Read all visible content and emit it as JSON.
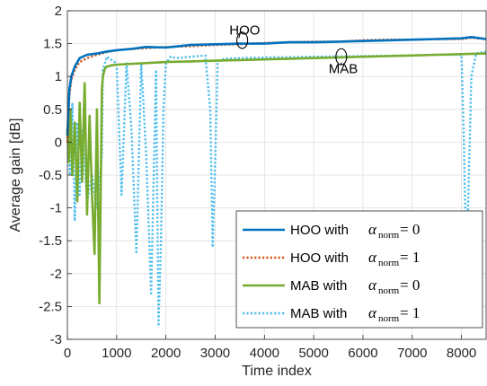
{
  "chart_data": {
    "type": "line",
    "title": "",
    "xlabel": "Time index",
    "ylabel": "Average gain [dB]",
    "xlim": [
      0,
      8500
    ],
    "ylim": [
      -3,
      2
    ],
    "xticks": [
      0,
      1000,
      2000,
      3000,
      4000,
      5000,
      6000,
      7000,
      8000
    ],
    "xtick_labels": [
      "0",
      "1000",
      "2000",
      "3000",
      "4000",
      "5000",
      "6000",
      "7000",
      "8000"
    ],
    "yticks": [
      -3,
      -2.5,
      -2,
      -1.5,
      -1,
      -0.5,
      0,
      0.5,
      1,
      1.5,
      2
    ],
    "ytick_labels": [
      "-3",
      "-2.5",
      "-2",
      "-1.5",
      "-1",
      "-0.5",
      "0",
      "0.5",
      "1",
      "1.5",
      "2"
    ],
    "grid": true,
    "legend_position": "bottom-right",
    "series": [
      {
        "name": "HOO with",
        "math": "α",
        "math_sub": "norm",
        "math_rhs": "= 0",
        "color": "#0072BD",
        "style": "solid",
        "x": [
          0,
          40,
          80,
          150,
          250,
          400,
          600,
          800,
          1000,
          1300,
          1600,
          2000,
          2500,
          3000,
          3500,
          4000,
          4500,
          5000,
          5500,
          6000,
          6500,
          7000,
          7500,
          8000,
          8200,
          8500
        ],
        "y": [
          0.1,
          0.8,
          1.0,
          1.15,
          1.28,
          1.33,
          1.35,
          1.38,
          1.4,
          1.42,
          1.45,
          1.44,
          1.48,
          1.49,
          1.5,
          1.5,
          1.52,
          1.52,
          1.53,
          1.54,
          1.55,
          1.56,
          1.57,
          1.58,
          1.6,
          1.57
        ]
      },
      {
        "name": "HOO with",
        "math": "α",
        "math_sub": "norm",
        "math_rhs": "= 1",
        "color": "#D95319",
        "style": "dotted",
        "x": [
          0,
          40,
          80,
          150,
          250,
          400,
          600,
          800,
          1000,
          1300,
          1600,
          2000,
          2500,
          3000,
          3500,
          4000,
          4500,
          5000,
          5500,
          6000,
          6500,
          7000,
          7500,
          8000,
          8200,
          8500
        ],
        "y": [
          0.0,
          0.7,
          0.95,
          1.1,
          1.22,
          1.28,
          1.33,
          1.37,
          1.4,
          1.42,
          1.43,
          1.45,
          1.46,
          1.48,
          1.49,
          1.51,
          1.52,
          1.53,
          1.53,
          1.55,
          1.56,
          1.56,
          1.57,
          1.57,
          1.59,
          1.57
        ]
      },
      {
        "name": "MAB with",
        "math": "α",
        "math_sub": "norm",
        "math_rhs": "= 0",
        "color": "#77AC30",
        "style": "solid",
        "x": [
          0,
          30,
          60,
          100,
          150,
          200,
          250,
          300,
          350,
          400,
          450,
          500,
          550,
          600,
          650,
          700,
          720,
          760,
          800,
          900,
          1000,
          1500,
          2000,
          2500,
          3000,
          3500,
          4000,
          4500,
          5000,
          5500,
          6000,
          6500,
          7000,
          7500,
          8000,
          8500
        ],
        "y": [
          0.2,
          -0.3,
          0.5,
          -0.5,
          0.3,
          -0.9,
          0.6,
          -0.6,
          0.9,
          -1.1,
          0.4,
          -0.8,
          -1.7,
          0.5,
          -2.45,
          0.8,
          1.0,
          1.12,
          1.15,
          1.17,
          1.18,
          1.2,
          1.22,
          1.23,
          1.24,
          1.25,
          1.26,
          1.27,
          1.28,
          1.29,
          1.3,
          1.31,
          1.32,
          1.33,
          1.34,
          1.35
        ]
      },
      {
        "name": "MAB with",
        "math": "α",
        "math_sub": "norm",
        "math_rhs": "= 1",
        "color": "#4DBEEE",
        "style": "dotted",
        "x": [
          0,
          50,
          100,
          150,
          200,
          250,
          300,
          400,
          500,
          600,
          700,
          720,
          800,
          900,
          1000,
          1100,
          1200,
          1300,
          1400,
          1500,
          1600,
          1700,
          1800,
          1850,
          1900,
          1950,
          2000,
          2100,
          2200,
          2500,
          2800,
          2900,
          2950,
          3000,
          3050,
          3100,
          3200,
          3500,
          4000,
          5000,
          6000,
          7000,
          7500,
          8000,
          8050,
          8100,
          8150,
          8200,
          8300,
          8500
        ],
        "y": [
          0.2,
          -0.5,
          0.6,
          -1.2,
          0.3,
          -0.8,
          0.2,
          -0.9,
          -0.5,
          -1.0,
          -0.2,
          1.1,
          1.3,
          1.25,
          1.2,
          -0.8,
          1.2,
          0.2,
          -1.7,
          1.2,
          -0.2,
          -2.3,
          1.1,
          -2.8,
          -1.5,
          0.5,
          1.2,
          1.3,
          1.28,
          1.3,
          1.32,
          0.5,
          -1.6,
          -0.3,
          1.2,
          1.25,
          1.27,
          1.28,
          1.29,
          1.3,
          1.31,
          1.32,
          1.33,
          1.33,
          0.0,
          -2.0,
          -0.5,
          1.0,
          1.35,
          1.38
        ]
      }
    ],
    "annotations": [
      {
        "text": "HOO",
        "x": 3600,
        "y": 1.64
      },
      {
        "text": "MAB",
        "x": 5600,
        "y": 1.05
      }
    ]
  }
}
